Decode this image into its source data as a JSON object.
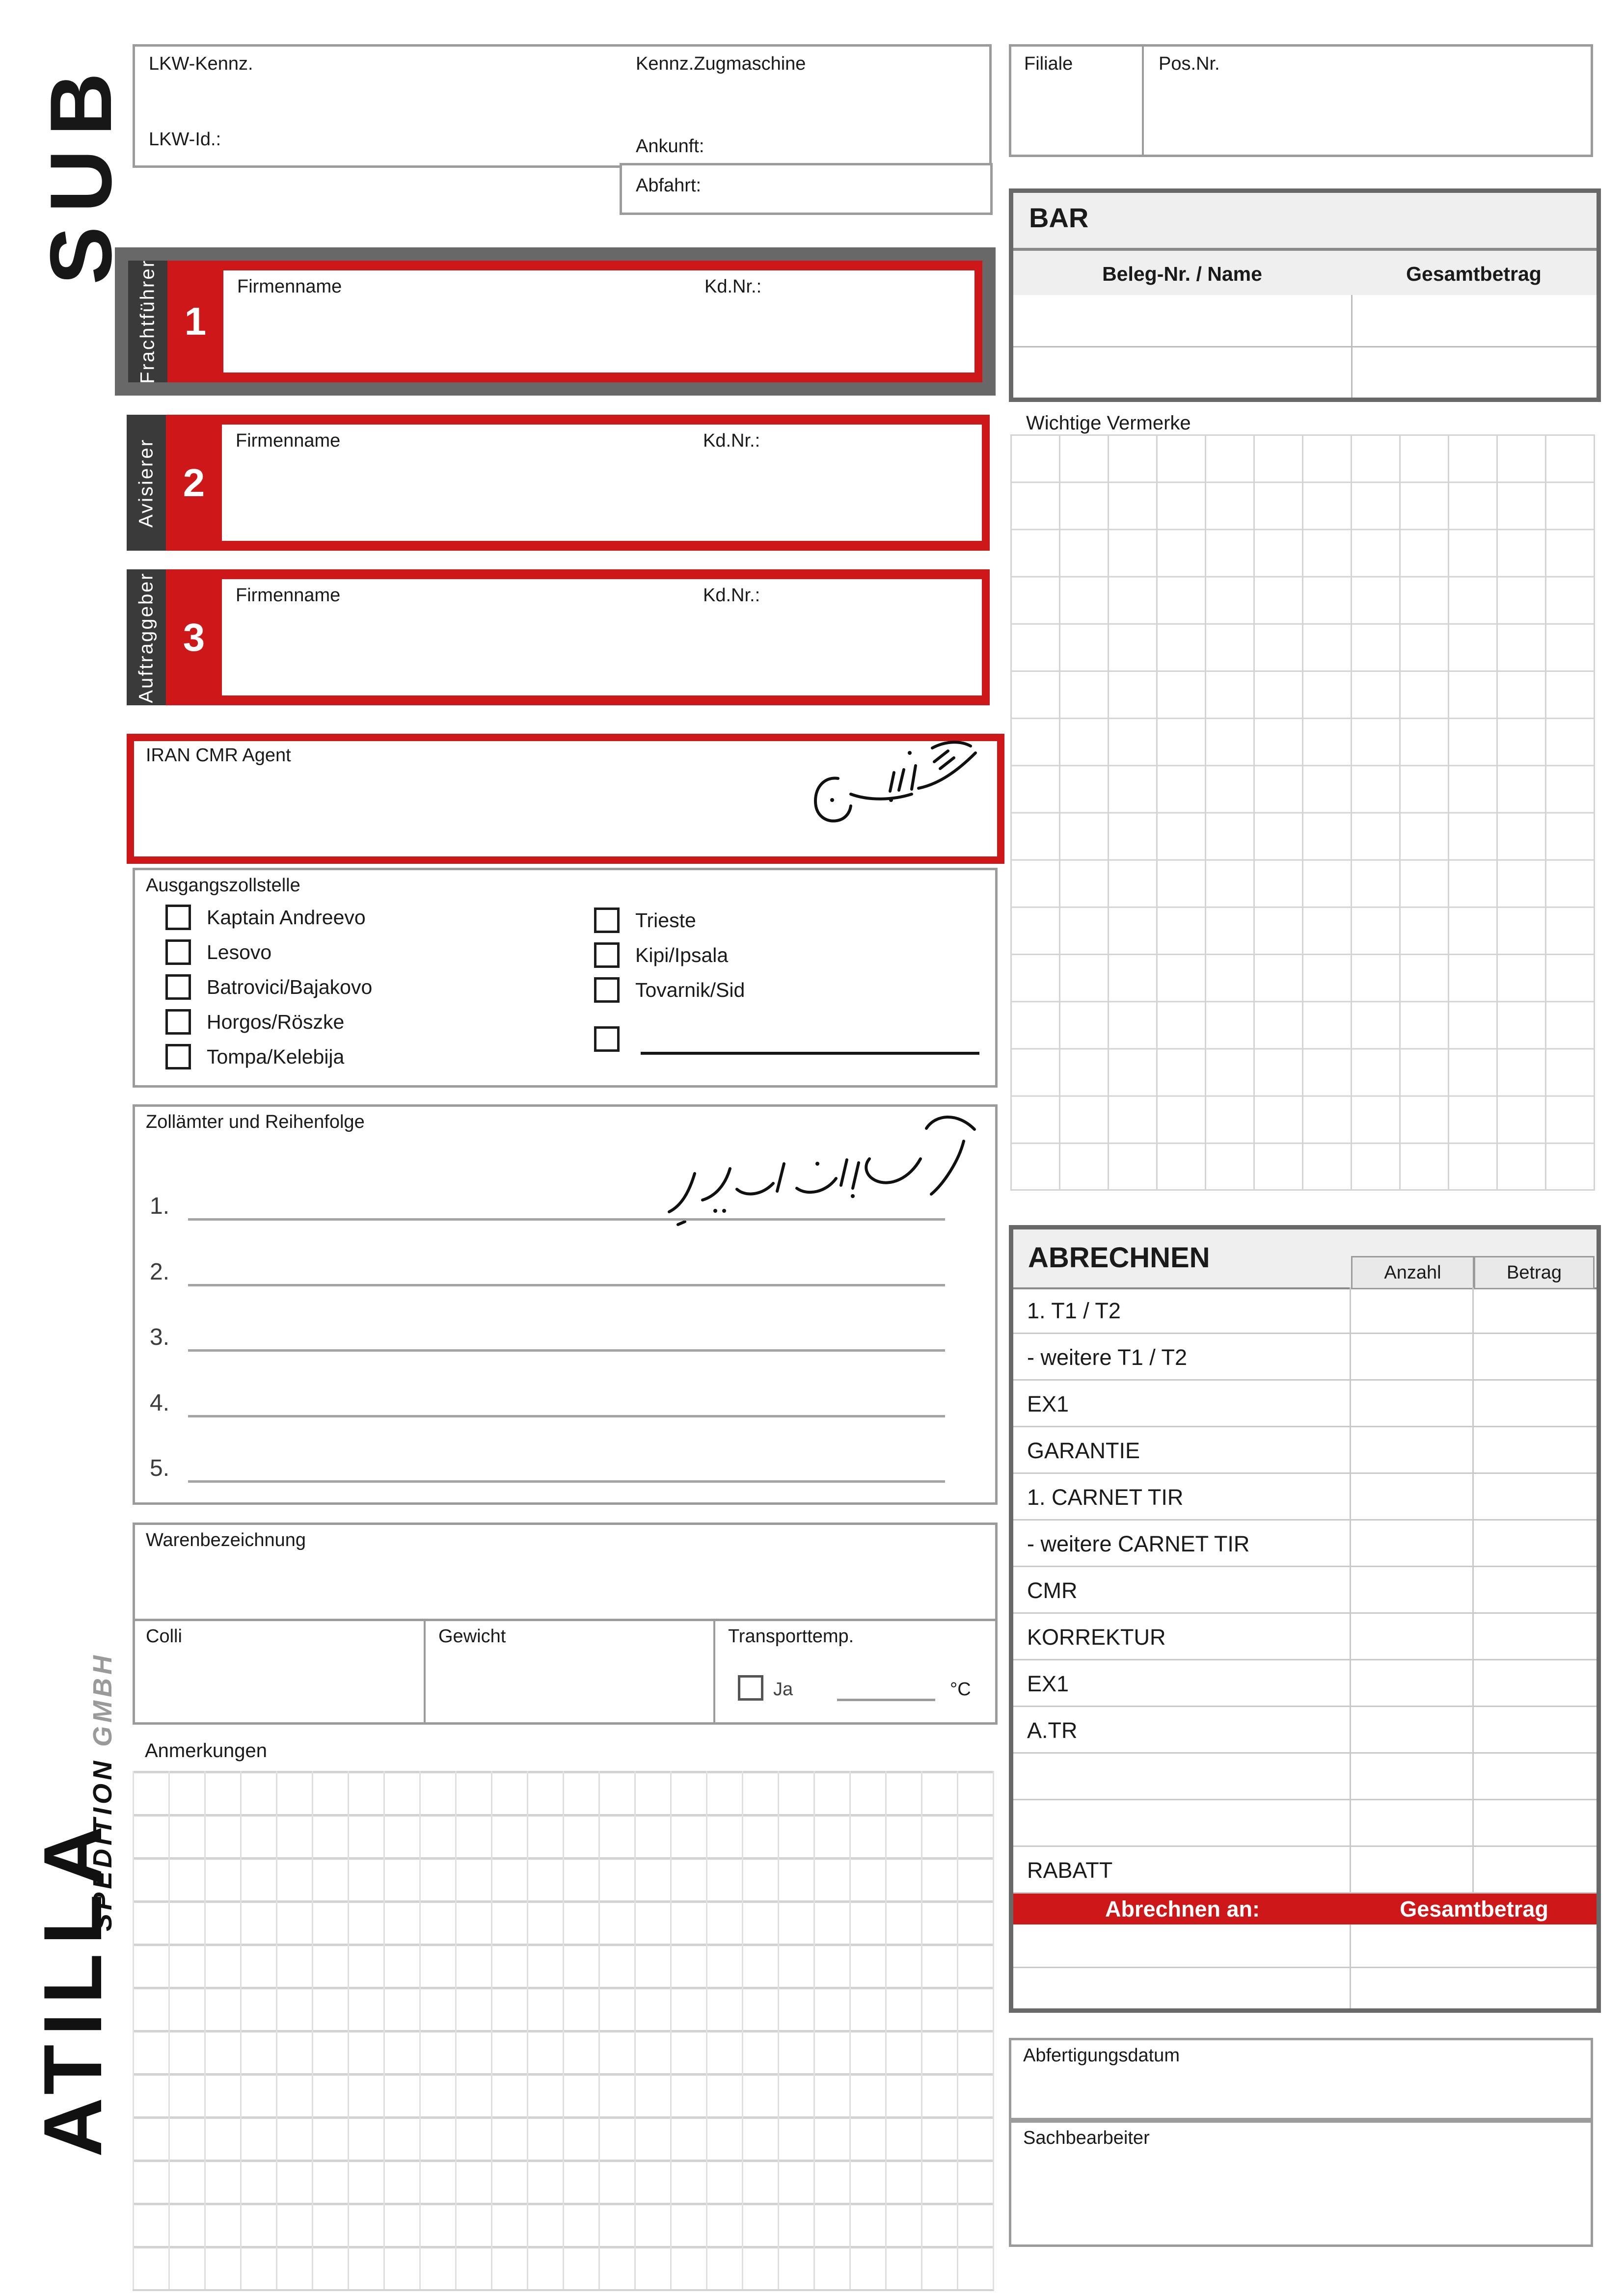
{
  "logo": {
    "sub": "SUB",
    "atilla": "ATILLA",
    "spedition": "SPEDITION ",
    "gmbh": "GMBH"
  },
  "truck_box": {
    "lkw_kennz": "LKW-Kennz.",
    "kennz_zugmaschine": "Kennz.Zugmaschine",
    "lkw_id": "LKW-Id.:",
    "ankunft": "Ankunft:",
    "abfahrt": "Abfahrt:"
  },
  "filiale_box": {
    "filiale": "Filiale",
    "pos_nr": "Pos.Nr."
  },
  "bar": {
    "title": "BAR",
    "col_beleg": "Beleg-Nr. / Name",
    "col_gesamt": "Gesamtbetrag"
  },
  "vermerke": {
    "label": "Wichtige Vermerke"
  },
  "fields": {
    "firmenname": "Firmenname",
    "kdnr": "Kd.Nr.:"
  },
  "parties": [
    {
      "num": "1",
      "label": "Frachtführer"
    },
    {
      "num": "2",
      "label": "Avisierer"
    },
    {
      "num": "3",
      "label": "Auftraggeber"
    }
  ],
  "iran": {
    "label": "IRAN CMR Agent",
    "handwriting": "گمرک بازرگان"
  },
  "zollstelle": {
    "label": "Ausgangszollstelle",
    "col1": [
      "Kaptain Andreevo",
      "Lesovo",
      "Batrovici/Bajakovo",
      "Horgos/Röszke",
      "Tompa/Kelebija"
    ],
    "col2": [
      "Trieste",
      "Kipi/Ipsala",
      "Tovarnik/Sid"
    ]
  },
  "zollamter": {
    "label": "Zollämter und Reihenfolge",
    "handwriting": "اسامی گمرکها به ترتیب تخلیه بار",
    "numbers": [
      "1.",
      "2.",
      "3.",
      "4.",
      "5."
    ]
  },
  "waren": {
    "label": "Warenbezeichnung"
  },
  "colli_row": {
    "colli": "Colli",
    "gewicht": "Gewicht",
    "transporttemp": "Transporttemp.",
    "ja": "Ja",
    "celsius": "°C"
  },
  "anmerkungen": {
    "label": "Anmerkungen"
  },
  "abrechnen": {
    "title": "ABRECHNEN",
    "col_anzahl": "Anzahl",
    "col_betrag": "Betrag",
    "rows": [
      "1. T1 / T2",
      " - weitere T1 / T2",
      "EX1",
      "GARANTIE",
      "1. CARNET TIR",
      " - weitere CARNET TIR",
      "CMR",
      "KORREKTUR",
      "EX1",
      "A.TR",
      "",
      "",
      "RABATT"
    ],
    "footer": {
      "abrechnen_an": "Abrechnen an:",
      "gesamtbetrag": "Gesamtbetrag"
    }
  },
  "bottom": {
    "abfertigungsdatum": "Abfertigungsdatum",
    "sachbearbeiter": "Sachbearbeiter"
  },
  "colors": {
    "red": "#cd1719",
    "dark_strip": "#3a3a3a",
    "heavy_frame": "#686868",
    "box_border": "#9b9b9b",
    "band": "#efefef"
  }
}
